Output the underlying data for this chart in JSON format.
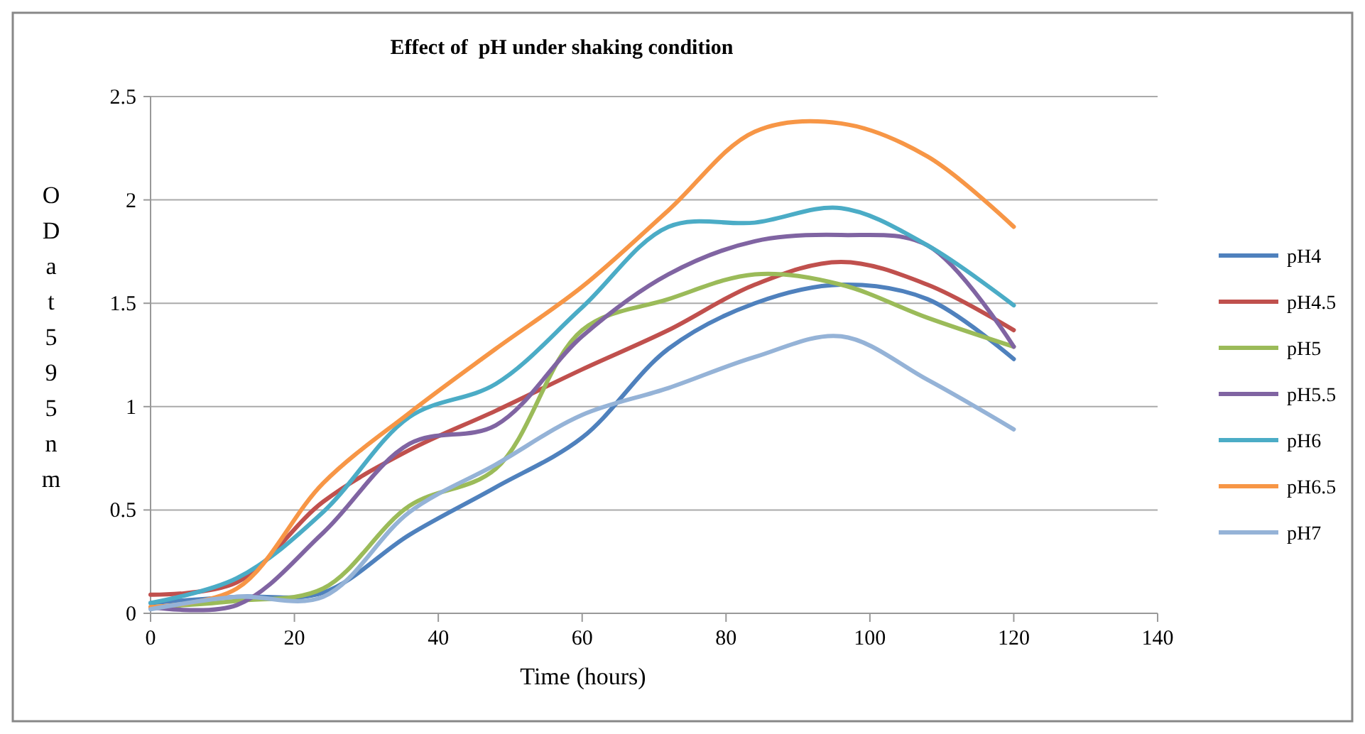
{
  "chart_data": {
    "type": "line",
    "title": "Effect of  pH under shaking condition",
    "xlabel": "Time (hours)",
    "ylabel": "OD at 595 nm",
    "x": [
      0,
      12,
      24,
      36,
      48,
      60,
      72,
      84,
      96,
      108,
      120
    ],
    "xlim": [
      0,
      140
    ],
    "xticks": [
      0,
      20,
      40,
      60,
      80,
      100,
      120,
      140
    ],
    "ylim": [
      0,
      2.5
    ],
    "yticks": [
      0,
      0.5,
      1,
      1.5,
      2,
      2.5
    ],
    "grid": "y",
    "legend": "right",
    "marker": "none",
    "line_style": "solid",
    "series": [
      {
        "name": "pH4",
        "color": "#4f81bd",
        "values": [
          0.05,
          0.08,
          0.1,
          0.38,
          0.61,
          0.85,
          1.28,
          1.5,
          1.59,
          1.52,
          1.23
        ]
      },
      {
        "name": "pH4.5",
        "color": "#c0504d",
        "values": [
          0.09,
          0.15,
          0.54,
          0.79,
          0.98,
          1.18,
          1.37,
          1.59,
          1.7,
          1.59,
          1.37
        ]
      },
      {
        "name": "pH5",
        "color": "#9bbb59",
        "values": [
          0.03,
          0.06,
          0.12,
          0.52,
          0.7,
          1.37,
          1.52,
          1.64,
          1.59,
          1.43,
          1.29
        ]
      },
      {
        "name": "pH5.5",
        "color": "#8064a2",
        "values": [
          0.03,
          0.04,
          0.39,
          0.82,
          0.91,
          1.34,
          1.64,
          1.8,
          1.83,
          1.78,
          1.29
        ]
      },
      {
        "name": "pH6",
        "color": "#4bacc6",
        "values": [
          0.05,
          0.17,
          0.49,
          0.95,
          1.11,
          1.48,
          1.87,
          1.89,
          1.96,
          1.78,
          1.49
        ]
      },
      {
        "name": "pH6.5",
        "color": "#f79646",
        "values": [
          0.03,
          0.12,
          0.63,
          0.97,
          1.28,
          1.58,
          1.95,
          2.33,
          2.37,
          2.21,
          1.87
        ]
      },
      {
        "name": "pH7",
        "color": "#95b3d7",
        "values": [
          0.02,
          0.08,
          0.08,
          0.49,
          0.72,
          0.96,
          1.09,
          1.24,
          1.34,
          1.13,
          0.89
        ]
      }
    ]
  }
}
